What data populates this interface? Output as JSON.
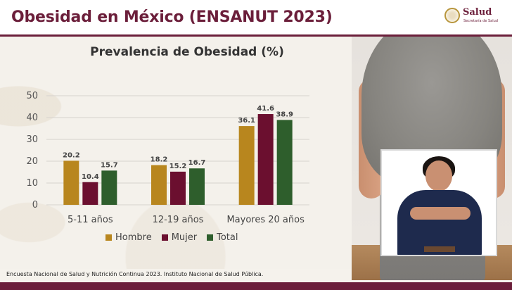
{
  "slide": {
    "title": "Obesidad en México (ENSANUT 2023)",
    "source_note": "Encuesta Nacional de Salud y Nutrición Continua 2023. Instituto Nacional de Salud Pública."
  },
  "logo": {
    "name": "Salud",
    "subtitle": "Secretaría de Salud"
  },
  "colors": {
    "brand": "#6b1e3a",
    "hombre": "#b8861e",
    "mujer": "#6b0f2f",
    "total": "#2e5e2c"
  },
  "chart_data": {
    "type": "bar",
    "title": "Prevalencia de Obesidad (%)",
    "categories": [
      "5-11 años",
      "12-19 años",
      "Mayores 20 años"
    ],
    "series": [
      {
        "name": "Hombre",
        "values": [
          20.2,
          18.2,
          36.1
        ]
      },
      {
        "name": "Mujer",
        "values": [
          10.4,
          15.2,
          41.6
        ]
      },
      {
        "name": "Total",
        "values": [
          15.7,
          16.7,
          38.9
        ]
      }
    ],
    "ylim": [
      0,
      50
    ],
    "yticks": [
      0,
      10,
      20,
      30,
      40,
      50
    ],
    "grid": true,
    "legend_position": "bottom"
  }
}
